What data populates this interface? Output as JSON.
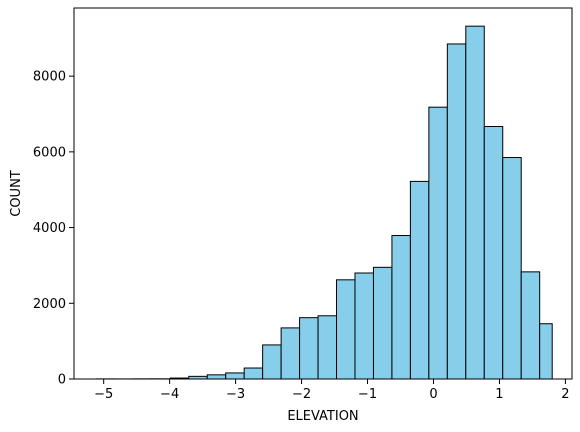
{
  "chart_data": {
    "type": "bar",
    "title": "",
    "xlabel": "ELEVATION",
    "ylabel": "COUNT",
    "xlim": [
      -5.45,
      2.1
    ],
    "ylim": [
      0,
      9800
    ],
    "xticks": [
      -5,
      -4,
      -3,
      -2,
      -1,
      0,
      1,
      2
    ],
    "yticks": [
      0,
      2000,
      4000,
      6000,
      8000
    ],
    "grid": false,
    "bar_color": "#87CEEB",
    "edge_color": "#000000",
    "bin_edges": [
      -5.11,
      -4.83,
      -4.55,
      -4.27,
      -3.99,
      -3.71,
      -3.43,
      -3.15,
      -2.87,
      -2.59,
      -2.31,
      -2.03,
      -1.75,
      -1.47,
      -1.19,
      -0.91,
      -0.63,
      -0.35,
      -0.07,
      0.21,
      0.49,
      0.77,
      1.05,
      1.33,
      1.61,
      1.8
    ],
    "values": [
      3,
      2,
      4,
      5,
      25,
      70,
      110,
      160,
      290,
      900,
      1350,
      1620,
      1670,
      2620,
      2800,
      2950,
      3790,
      5220,
      7180,
      8850,
      9320,
      6670,
      5850,
      2830,
      1460
    ]
  }
}
